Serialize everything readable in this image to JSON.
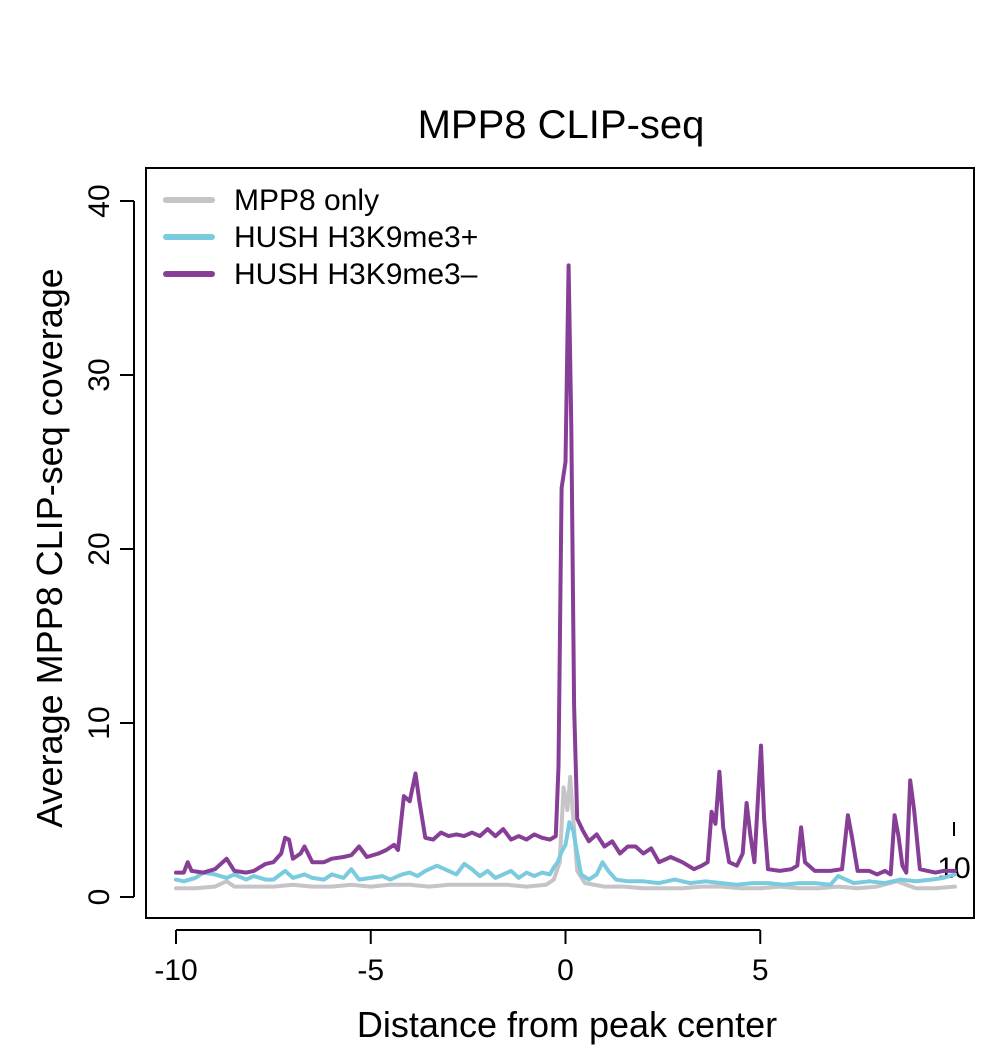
{
  "chart_data": {
    "type": "line",
    "title": "MPP8 CLIP-seq",
    "xlabel": "Distance from peak center",
    "ylabel": "Average MPP8 CLIP-seq coverage",
    "xlim": [
      -10,
      10
    ],
    "ylim": [
      0,
      40
    ],
    "x_ticks": [
      {
        "value": -10,
        "label": "-10"
      },
      {
        "value": -5,
        "label": "-5"
      },
      {
        "value": 0,
        "label": "0"
      },
      {
        "value": 5,
        "label": "5"
      }
    ],
    "x_extra_tick": {
      "value": 10,
      "label": "10"
    },
    "y_ticks": [
      {
        "value": 0,
        "label": "0"
      },
      {
        "value": 10,
        "label": "10"
      },
      {
        "value": 20,
        "label": "20"
      },
      {
        "value": 30,
        "label": "30"
      },
      {
        "value": 40,
        "label": "40"
      }
    ],
    "grid": false,
    "legend_position": "top-left",
    "series": [
      {
        "name": "MPP8 only",
        "color": "#c6c4c6",
        "points": [
          [
            -10,
            0.5
          ],
          [
            -9.5,
            0.5
          ],
          [
            -9,
            0.6
          ],
          [
            -8.7,
            0.9
          ],
          [
            -8.5,
            0.6
          ],
          [
            -8,
            0.6
          ],
          [
            -7.5,
            0.6
          ],
          [
            -7,
            0.7
          ],
          [
            -6.5,
            0.6
          ],
          [
            -6,
            0.6
          ],
          [
            -5.5,
            0.7
          ],
          [
            -5,
            0.6
          ],
          [
            -4.5,
            0.7
          ],
          [
            -4,
            0.7
          ],
          [
            -3.5,
            0.6
          ],
          [
            -3,
            0.7
          ],
          [
            -2.5,
            0.7
          ],
          [
            -2,
            0.7
          ],
          [
            -1.5,
            0.7
          ],
          [
            -1,
            0.6
          ],
          [
            -0.5,
            0.7
          ],
          [
            -0.3,
            1.0
          ],
          [
            -0.15,
            2.0
          ],
          [
            -0.05,
            6.3
          ],
          [
            0.05,
            5.0
          ],
          [
            0.12,
            6.9
          ],
          [
            0.2,
            4.5
          ],
          [
            0.3,
            1.5
          ],
          [
            0.5,
            0.8
          ],
          [
            1,
            0.6
          ],
          [
            1.5,
            0.6
          ],
          [
            2,
            0.5
          ],
          [
            2.5,
            0.5
          ],
          [
            3,
            0.5
          ],
          [
            3.5,
            0.6
          ],
          [
            4,
            0.6
          ],
          [
            4.5,
            0.5
          ],
          [
            5,
            0.5
          ],
          [
            5.5,
            0.6
          ],
          [
            6,
            0.5
          ],
          [
            6.5,
            0.5
          ],
          [
            7,
            0.6
          ],
          [
            7.5,
            0.5
          ],
          [
            8,
            0.6
          ],
          [
            8.5,
            0.9
          ],
          [
            9,
            0.5
          ],
          [
            9.5,
            0.5
          ],
          [
            10,
            0.6
          ]
        ]
      },
      {
        "name": "HUSH H3K9me3+",
        "color": "#7bcbdf",
        "points": [
          [
            -10,
            1.0
          ],
          [
            -9.8,
            0.9
          ],
          [
            -9.5,
            1.1
          ],
          [
            -9.3,
            1.4
          ],
          [
            -9,
            1.3
          ],
          [
            -8.7,
            1.1
          ],
          [
            -8.5,
            1.3
          ],
          [
            -8.2,
            1.0
          ],
          [
            -8,
            1.2
          ],
          [
            -7.7,
            1.0
          ],
          [
            -7.5,
            1.0
          ],
          [
            -7.2,
            1.5
          ],
          [
            -7,
            1.1
          ],
          [
            -6.7,
            1.3
          ],
          [
            -6.5,
            1.1
          ],
          [
            -6.2,
            1.0
          ],
          [
            -6,
            1.3
          ],
          [
            -5.7,
            1.1
          ],
          [
            -5.5,
            1.6
          ],
          [
            -5.3,
            1.0
          ],
          [
            -5,
            1.1
          ],
          [
            -4.7,
            1.2
          ],
          [
            -4.5,
            1.0
          ],
          [
            -4.2,
            1.3
          ],
          [
            -4,
            1.4
          ],
          [
            -3.8,
            1.2
          ],
          [
            -3.6,
            1.5
          ],
          [
            -3.3,
            1.8
          ],
          [
            -3,
            1.5
          ],
          [
            -2.8,
            1.3
          ],
          [
            -2.6,
            1.9
          ],
          [
            -2.4,
            1.6
          ],
          [
            -2.2,
            1.2
          ],
          [
            -2,
            1.5
          ],
          [
            -1.8,
            1.1
          ],
          [
            -1.6,
            1.3
          ],
          [
            -1.4,
            1.5
          ],
          [
            -1.2,
            1.1
          ],
          [
            -1,
            1.4
          ],
          [
            -0.8,
            1.2
          ],
          [
            -0.6,
            1.4
          ],
          [
            -0.4,
            1.3
          ],
          [
            -0.3,
            1.7
          ],
          [
            -0.2,
            2.0
          ],
          [
            -0.1,
            2.6
          ],
          [
            0,
            3.0
          ],
          [
            0.1,
            4.3
          ],
          [
            0.2,
            3.8
          ],
          [
            0.3,
            2.5
          ],
          [
            0.4,
            1.3
          ],
          [
            0.6,
            1.0
          ],
          [
            0.8,
            1.3
          ],
          [
            0.95,
            2.0
          ],
          [
            1.1,
            1.5
          ],
          [
            1.3,
            1.0
          ],
          [
            1.6,
            0.9
          ],
          [
            2,
            0.9
          ],
          [
            2.4,
            0.8
          ],
          [
            2.8,
            1.0
          ],
          [
            3.2,
            0.8
          ],
          [
            3.6,
            0.9
          ],
          [
            4,
            0.8
          ],
          [
            4.4,
            0.7
          ],
          [
            4.8,
            0.8
          ],
          [
            5.2,
            0.8
          ],
          [
            5.6,
            0.7
          ],
          [
            6,
            0.8
          ],
          [
            6.4,
            0.8
          ],
          [
            6.8,
            0.7
          ],
          [
            7,
            1.2
          ],
          [
            7.2,
            1.0
          ],
          [
            7.4,
            0.8
          ],
          [
            7.8,
            0.9
          ],
          [
            8.2,
            0.8
          ],
          [
            8.6,
            1.0
          ],
          [
            9,
            0.9
          ],
          [
            9.4,
            1.0
          ],
          [
            9.7,
            1.1
          ],
          [
            10,
            1.3
          ]
        ]
      },
      {
        "name": "HUSH H3K9me3–",
        "color": "#863e96",
        "points": [
          [
            -10,
            1.4
          ],
          [
            -9.8,
            1.4
          ],
          [
            -9.7,
            2.0
          ],
          [
            -9.6,
            1.5
          ],
          [
            -9.3,
            1.4
          ],
          [
            -9,
            1.6
          ],
          [
            -8.7,
            2.2
          ],
          [
            -8.5,
            1.5
          ],
          [
            -8.2,
            1.4
          ],
          [
            -8,
            1.5
          ],
          [
            -7.7,
            1.9
          ],
          [
            -7.5,
            2.0
          ],
          [
            -7.3,
            2.5
          ],
          [
            -7.2,
            3.4
          ],
          [
            -7.1,
            3.3
          ],
          [
            -7,
            2.2
          ],
          [
            -6.8,
            2.5
          ],
          [
            -6.7,
            2.9
          ],
          [
            -6.5,
            2.0
          ],
          [
            -6.2,
            2.0
          ],
          [
            -6,
            2.2
          ],
          [
            -5.7,
            2.3
          ],
          [
            -5.5,
            2.4
          ],
          [
            -5.3,
            2.9
          ],
          [
            -5.1,
            2.3
          ],
          [
            -4.8,
            2.5
          ],
          [
            -4.6,
            2.7
          ],
          [
            -4.4,
            3.0
          ],
          [
            -4.3,
            2.7
          ],
          [
            -4.15,
            5.8
          ],
          [
            -4.0,
            5.5
          ],
          [
            -3.85,
            7.1
          ],
          [
            -3.75,
            5.5
          ],
          [
            -3.6,
            3.4
          ],
          [
            -3.4,
            3.3
          ],
          [
            -3.2,
            3.7
          ],
          [
            -3,
            3.5
          ],
          [
            -2.8,
            3.6
          ],
          [
            -2.6,
            3.5
          ],
          [
            -2.4,
            3.7
          ],
          [
            -2.2,
            3.5
          ],
          [
            -2,
            3.9
          ],
          [
            -1.8,
            3.5
          ],
          [
            -1.6,
            3.9
          ],
          [
            -1.4,
            3.3
          ],
          [
            -1.2,
            3.5
          ],
          [
            -1,
            3.3
          ],
          [
            -0.8,
            3.6
          ],
          [
            -0.6,
            3.4
          ],
          [
            -0.4,
            3.3
          ],
          [
            -0.25,
            3.5
          ],
          [
            -0.18,
            7.5
          ],
          [
            -0.1,
            23.5
          ],
          [
            0.0,
            25.0
          ],
          [
            0.08,
            36.3
          ],
          [
            0.15,
            27.0
          ],
          [
            0.22,
            11.0
          ],
          [
            0.3,
            4.5
          ],
          [
            0.45,
            3.8
          ],
          [
            0.6,
            3.2
          ],
          [
            0.8,
            3.6
          ],
          [
            1,
            2.9
          ],
          [
            1.2,
            3.2
          ],
          [
            1.4,
            2.5
          ],
          [
            1.6,
            2.9
          ],
          [
            1.8,
            2.9
          ],
          [
            2,
            2.5
          ],
          [
            2.2,
            2.8
          ],
          [
            2.4,
            2.0
          ],
          [
            2.7,
            2.3
          ],
          [
            3,
            2.0
          ],
          [
            3.3,
            1.6
          ],
          [
            3.5,
            1.8
          ],
          [
            3.65,
            2.0
          ],
          [
            3.75,
            4.9
          ],
          [
            3.85,
            4.2
          ],
          [
            3.95,
            7.2
          ],
          [
            4.05,
            4.0
          ],
          [
            4.2,
            2.0
          ],
          [
            4.4,
            1.8
          ],
          [
            4.55,
            2.5
          ],
          [
            4.65,
            5.4
          ],
          [
            4.75,
            3.5
          ],
          [
            4.85,
            2.0
          ],
          [
            4.95,
            6.0
          ],
          [
            5.02,
            8.7
          ],
          [
            5.1,
            4.5
          ],
          [
            5.2,
            1.6
          ],
          [
            5.5,
            1.5
          ],
          [
            5.8,
            1.6
          ],
          [
            5.95,
            1.8
          ],
          [
            6.05,
            4.0
          ],
          [
            6.15,
            2.0
          ],
          [
            6.4,
            1.5
          ],
          [
            6.8,
            1.5
          ],
          [
            7.1,
            1.6
          ],
          [
            7.25,
            4.7
          ],
          [
            7.35,
            3.5
          ],
          [
            7.5,
            1.5
          ],
          [
            7.8,
            1.5
          ],
          [
            8.0,
            1.3
          ],
          [
            8.2,
            1.5
          ],
          [
            8.35,
            1.3
          ],
          [
            8.45,
            4.7
          ],
          [
            8.55,
            3.5
          ],
          [
            8.65,
            1.8
          ],
          [
            8.75,
            1.4
          ],
          [
            8.85,
            6.7
          ],
          [
            8.95,
            5.0
          ],
          [
            9.1,
            1.6
          ],
          [
            9.3,
            1.5
          ],
          [
            9.5,
            1.4
          ],
          [
            9.7,
            1.5
          ],
          [
            10,
            1.5
          ]
        ]
      }
    ]
  }
}
